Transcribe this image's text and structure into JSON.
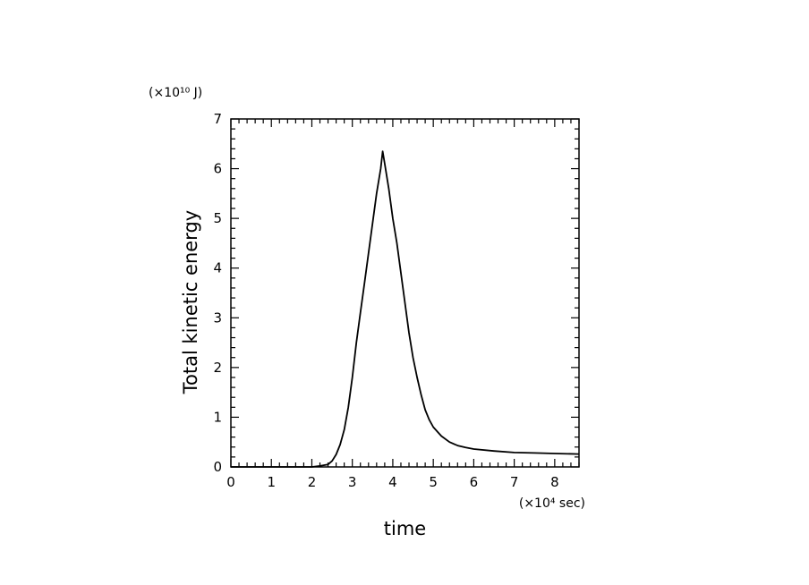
{
  "chart_data": {
    "type": "line",
    "title": "",
    "xlabel": "time",
    "ylabel": "Total kinetic energy",
    "x_unit": "(×10⁴ sec)",
    "y_unit": "(×10¹⁰ J)",
    "xlim": [
      0,
      8.6
    ],
    "ylim": [
      0,
      7
    ],
    "x_ticks": [
      "0",
      "1",
      "2",
      "3",
      "4",
      "5",
      "6",
      "7",
      "8"
    ],
    "y_ticks": [
      "0",
      "1",
      "2",
      "3",
      "4",
      "5",
      "6",
      "7"
    ],
    "grid": false,
    "legend": "none",
    "line_color": "#000000",
    "series": [
      {
        "x": [
          0,
          1.0,
          2.0,
          2.2,
          2.4,
          2.5,
          2.6,
          2.7,
          2.8,
          2.9,
          3.0,
          3.1,
          3.2,
          3.3,
          3.4,
          3.5,
          3.6,
          3.7,
          3.75,
          3.8,
          3.9,
          4.0,
          4.1,
          4.2,
          4.3,
          4.4,
          4.5,
          4.6,
          4.7,
          4.8,
          4.9,
          5.0,
          5.2,
          5.4,
          5.6,
          5.8,
          6.0,
          6.5,
          7.0,
          7.5,
          8.0,
          8.6
        ],
        "y": [
          0,
          0,
          0,
          0.02,
          0.05,
          0.12,
          0.25,
          0.45,
          0.75,
          1.2,
          1.8,
          2.5,
          3.1,
          3.7,
          4.3,
          4.9,
          5.5,
          6.0,
          6.35,
          6.1,
          5.6,
          5.0,
          4.5,
          3.9,
          3.3,
          2.7,
          2.2,
          1.8,
          1.45,
          1.15,
          0.95,
          0.8,
          0.62,
          0.5,
          0.43,
          0.39,
          0.36,
          0.32,
          0.29,
          0.28,
          0.27,
          0.26
        ]
      }
    ]
  }
}
